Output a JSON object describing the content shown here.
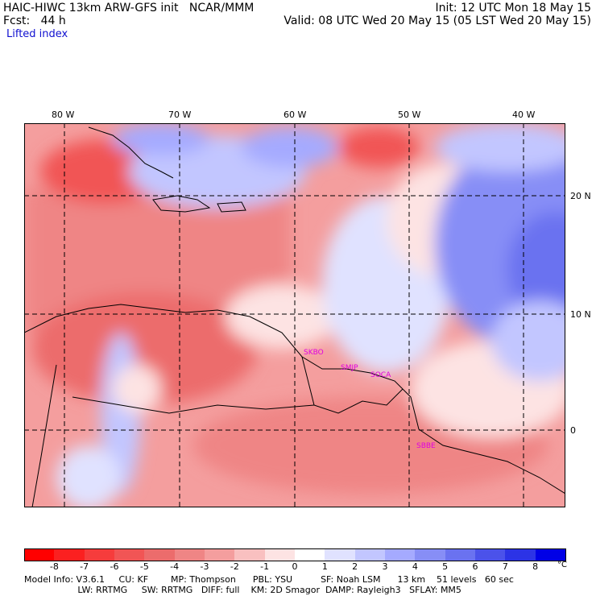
{
  "header": {
    "line1_left": "HAIC-HIWC 13km ARW-GFS init   NCAR/MMM",
    "line2_left": "Fcst:   44 h",
    "init": "Init: 12 UTC Mon 18 May 15",
    "valid": "Valid: 08 UTC Wed 20 May 15 (05 LST Wed 20 May 15)",
    "field": "Lifted index"
  },
  "axes": {
    "lon_labels": [
      "80 W",
      "70 W",
      "60 W",
      "50 W",
      "40 W"
    ],
    "lat_labels": [
      "20 N",
      "10 N",
      "0"
    ]
  },
  "stations": [
    "SKBO",
    "SMJP",
    "SOCA",
    "SBBE"
  ],
  "colorbar": {
    "labels": [
      "-8",
      "-7",
      "-6",
      "-5",
      "-4",
      "-3",
      "-2",
      "-1",
      "0",
      "1",
      "2",
      "3",
      "4",
      "5",
      "6",
      "7",
      "8"
    ],
    "unit": "°C",
    "colors": [
      "#ff0000",
      "#fb2020",
      "#f63c3c",
      "#f15555",
      "#ec6c6c",
      "#ef8585",
      "#f49e9e",
      "#f9c0c0",
      "#fde3e3",
      "#ffffff",
      "#e0e2ff",
      "#c2c6ff",
      "#a5aaff",
      "#878ef6",
      "#6a72f0",
      "#4b52ea",
      "#2c33e6",
      "#0000e6"
    ]
  },
  "footer": {
    "line1": "Model Info: V3.6.1     CU: KF        MP: Thompson      PBL: YSU          SF: Noah LSM      13 km    51 levels   60 sec",
    "line2": "                   LW: RRTMG     SW: RRTMG   DIFF: full    KM: 2D Smagor  DAMP: Rayleigh3   SFLAY: MM5"
  }
}
